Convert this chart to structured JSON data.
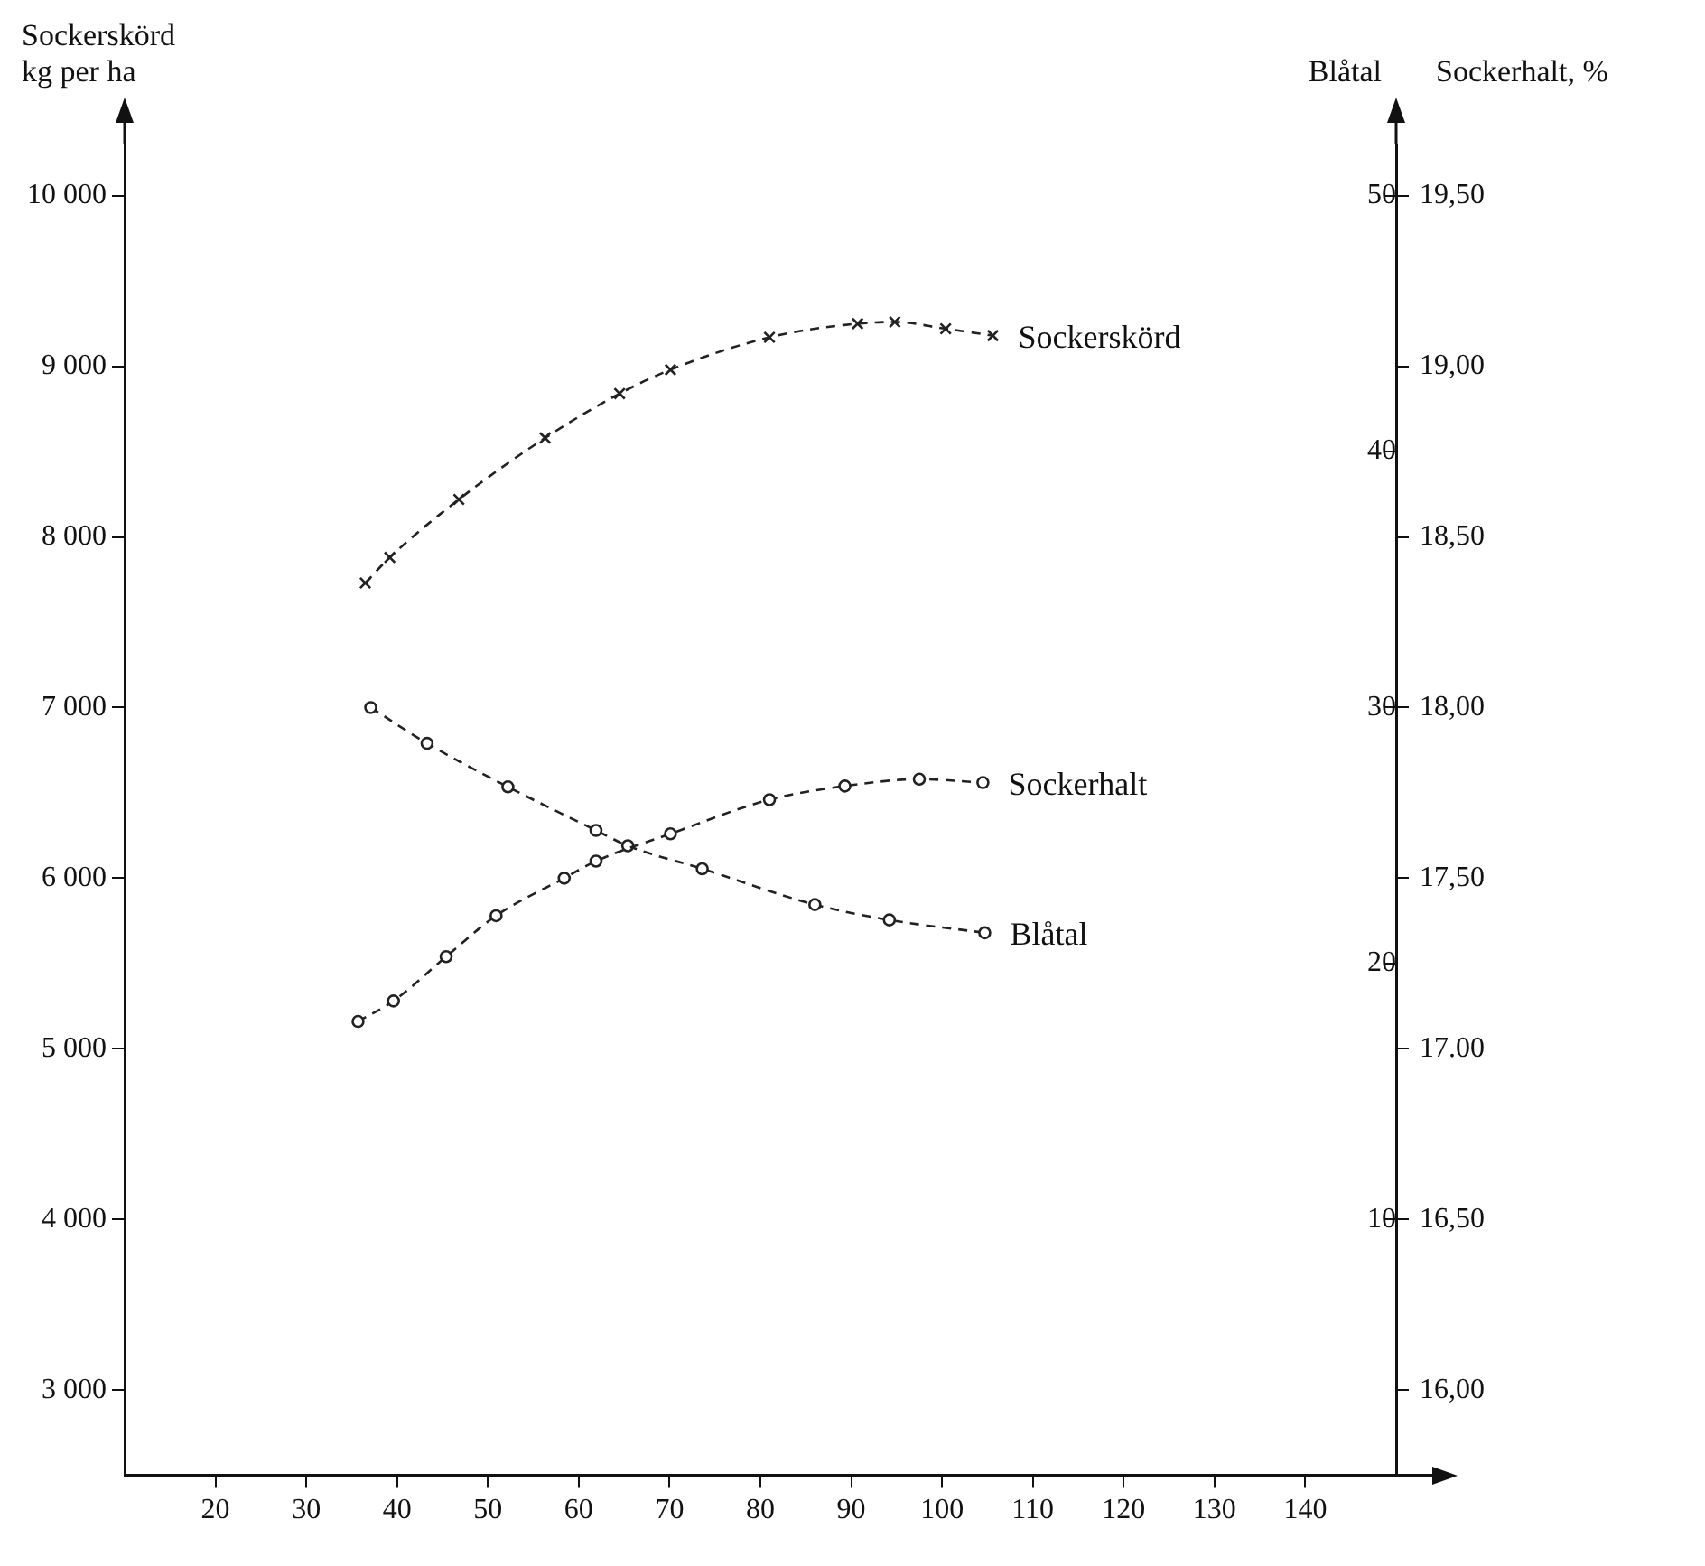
{
  "chart_data": {
    "type": "line",
    "ylabel": "Sockerskörd\nkg per ha",
    "y2label": "Blåtal",
    "y3label": "Sockerhalt, %",
    "xlim": [
      10,
      150
    ],
    "xticks": [
      20,
      30,
      40,
      50,
      60,
      70,
      80,
      90,
      100,
      110,
      120,
      130,
      140
    ],
    "ylim": [
      2500,
      10300
    ],
    "yticks": [
      {
        "value": 3000,
        "label": "3 000"
      },
      {
        "value": 4000,
        "label": "4 000"
      },
      {
        "value": 5000,
        "label": "5 000"
      },
      {
        "value": 6000,
        "label": "6 000"
      },
      {
        "value": 7000,
        "label": "7 000"
      },
      {
        "value": 8000,
        "label": "8 000"
      },
      {
        "value": 9000,
        "label": "9 000"
      },
      {
        "value": 10000,
        "label": "10 000"
      }
    ],
    "y2lim": [
      0,
      52
    ],
    "y2ticks": [
      10,
      20,
      30,
      40,
      50
    ],
    "y3lim": [
      15.75,
      19.65
    ],
    "y3ticks": [
      {
        "value": 16,
        "label": "16,00"
      },
      {
        "value": 16.5,
        "label": "16,50"
      },
      {
        "value": 17,
        "label": "17.00"
      },
      {
        "value": 17.5,
        "label": "17,50"
      },
      {
        "value": 18,
        "label": "18,00"
      },
      {
        "value": 18.5,
        "label": "18,50"
      },
      {
        "value": 19,
        "label": "19,00"
      },
      {
        "value": 19.5,
        "label": "19,50"
      }
    ],
    "grid": false,
    "legend": false,
    "line_style": "dashed",
    "series": [
      {
        "name": "Sockerskörd",
        "color": "#222222",
        "marker": "cross",
        "axis": "y",
        "x": [
          36.5,
          39.2,
          46.8,
          56.3,
          64.5,
          70.1,
          81.0,
          90.7,
          94.8,
          100.4,
          105.6
        ],
        "values": [
          7730,
          7880,
          8220,
          8580,
          8840,
          8980,
          9170,
          9250,
          9260,
          9220,
          9180
        ]
      },
      {
        "name": "Sockerhalt",
        "color": "#222222",
        "marker": "circle",
        "axis": "y3",
        "x": [
          35.7,
          39.6,
          45.4,
          50.9,
          58.4,
          61.9,
          70.1,
          81.0,
          89.3,
          97.5,
          104.5
        ],
        "values": [
          17.08,
          17.14,
          17.27,
          17.39,
          17.5,
          17.55,
          17.63,
          17.73,
          17.77,
          17.79,
          17.78
        ]
      },
      {
        "name": "Blåtal",
        "color": "#222222",
        "marker": "circle",
        "axis": "y2",
        "x": [
          37.1,
          43.3,
          52.2,
          61.9,
          65.4,
          73.6,
          86.0,
          94.2,
          104.7
        ],
        "values": [
          30.0,
          28.6,
          26.9,
          25.2,
          24.6,
          23.7,
          22.3,
          21.7,
          21.2
        ]
      }
    ]
  }
}
